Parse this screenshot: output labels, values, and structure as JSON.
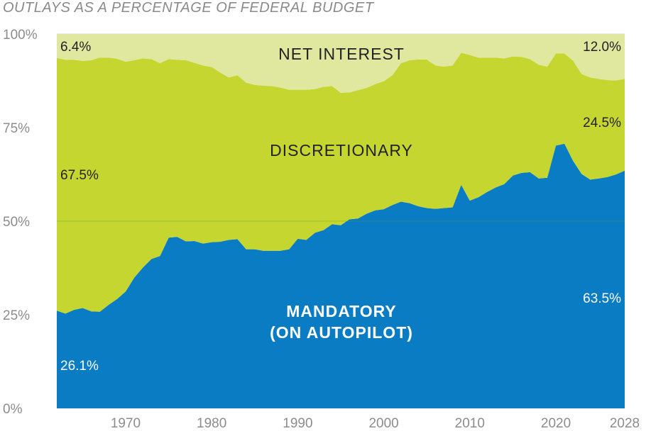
{
  "chart_data": {
    "type": "area",
    "stacked": true,
    "title": "OUTLAYS AS A PERCENTAGE OF FEDERAL BUDGET",
    "xlim": [
      1962,
      2028
    ],
    "ylim": [
      0,
      100
    ],
    "x_ticks": [
      1970,
      1980,
      1990,
      2000,
      2010,
      2020,
      2028
    ],
    "y_ticks": [
      {
        "value": 0,
        "label": "0%"
      },
      {
        "value": 25,
        "label": "25%"
      },
      {
        "value": 50,
        "label": "50%"
      },
      {
        "value": 75,
        "label": "75%"
      },
      {
        "value": 100,
        "label": "100%"
      }
    ],
    "grid": "horizontal",
    "x": [
      1962,
      1963,
      1964,
      1965,
      1966,
      1967,
      1968,
      1969,
      1970,
      1971,
      1972,
      1973,
      1974,
      1975,
      1976,
      1977,
      1978,
      1979,
      1980,
      1981,
      1982,
      1983,
      1984,
      1985,
      1986,
      1987,
      1988,
      1989,
      1990,
      1991,
      1992,
      1993,
      1994,
      1995,
      1996,
      1997,
      1998,
      1999,
      2000,
      2001,
      2002,
      2003,
      2004,
      2005,
      2006,
      2007,
      2008,
      2009,
      2010,
      2011,
      2012,
      2013,
      2014,
      2015,
      2016,
      2017,
      2018,
      2019,
      2020,
      2021,
      2022,
      2023,
      2024,
      2025,
      2026,
      2027,
      2028
    ],
    "series": [
      {
        "name": "MANDATORY\n(ON AUTOPILOT)",
        "color": "#0a7cc4",
        "values": [
          26.1,
          25.3,
          26.3,
          26.8,
          25.9,
          25.8,
          27.6,
          29.2,
          31.2,
          34.9,
          37.6,
          39.9,
          40.7,
          45.6,
          45.8,
          44.6,
          44.7,
          44.0,
          44.4,
          44.5,
          45.0,
          45.2,
          42.5,
          42.5,
          42.1,
          42.1,
          42.1,
          42.5,
          45.3,
          45.0,
          46.9,
          47.6,
          49.2,
          48.9,
          50.5,
          50.7,
          52.0,
          52.9,
          53.2,
          54.3,
          55.2,
          54.8,
          54.0,
          53.5,
          53.3,
          53.5,
          53.7,
          59.7,
          55.5,
          56.4,
          57.8,
          59.0,
          59.9,
          62.2,
          62.9,
          63.1,
          61.4,
          61.6,
          70.2,
          70.7,
          66.1,
          62.6,
          61.1,
          61.4,
          61.8,
          62.5,
          63.5
        ]
      },
      {
        "name": "DISCRETIONARY",
        "color": "#c5d630",
        "values": [
          67.5,
          67.8,
          66.8,
          66.0,
          67.1,
          67.9,
          66.1,
          64.2,
          61.4,
          58.1,
          55.9,
          53.4,
          51.5,
          47.7,
          47.3,
          48.4,
          47.6,
          47.6,
          46.8,
          45.2,
          43.4,
          43.8,
          44.5,
          43.9,
          44.1,
          44.0,
          43.6,
          42.6,
          39.8,
          40.1,
          38.4,
          38.3,
          36.9,
          35.4,
          33.9,
          34.3,
          33.6,
          33.7,
          34.2,
          34.7,
          37.0,
          38.2,
          39.2,
          39.7,
          38.3,
          37.8,
          37.9,
          35.3,
          38.9,
          37.3,
          35.9,
          34.7,
          33.6,
          31.8,
          31.0,
          30.2,
          30.4,
          29.7,
          24.6,
          24.1,
          26.8,
          26.7,
          27.3,
          26.6,
          25.9,
          25.1,
          24.5
        ]
      },
      {
        "name": "NET INTEREST",
        "color": "#e0e8a0",
        "values": [
          6.4,
          6.9,
          6.9,
          7.2,
          7.0,
          6.3,
          6.3,
          6.6,
          7.4,
          7.0,
          6.5,
          6.7,
          7.8,
          6.7,
          6.9,
          7.0,
          7.7,
          8.4,
          8.8,
          10.3,
          11.6,
          11.0,
          13.0,
          13.6,
          13.8,
          13.9,
          14.3,
          14.9,
          14.9,
          14.9,
          14.7,
          14.1,
          13.9,
          15.7,
          15.6,
          15.0,
          14.4,
          13.4,
          12.6,
          11.0,
          7.8,
          7.0,
          6.8,
          6.8,
          8.4,
          8.7,
          8.4,
          5.0,
          5.6,
          6.3,
          6.3,
          6.3,
          6.5,
          6.0,
          6.1,
          6.7,
          8.2,
          8.7,
          5.2,
          5.2,
          7.1,
          10.7,
          11.6,
          12.0,
          12.3,
          12.4,
          12.0
        ]
      }
    ],
    "annotations": [
      {
        "text": "6.4%",
        "x": 1962,
        "y": 96.8,
        "series": 2
      },
      {
        "text": "12.0%",
        "x": 2028,
        "y": 96.8,
        "series": 2
      },
      {
        "text": "67.5%",
        "x": 1962,
        "y": 62.5,
        "series": 1
      },
      {
        "text": "24.5%",
        "x": 2028,
        "y": 76.5,
        "series": 1
      },
      {
        "text": "26.1%",
        "x": 1962,
        "y": 11.6,
        "series": 0
      },
      {
        "text": "63.5%",
        "x": 2028,
        "y": 29.5,
        "series": 0
      }
    ]
  }
}
